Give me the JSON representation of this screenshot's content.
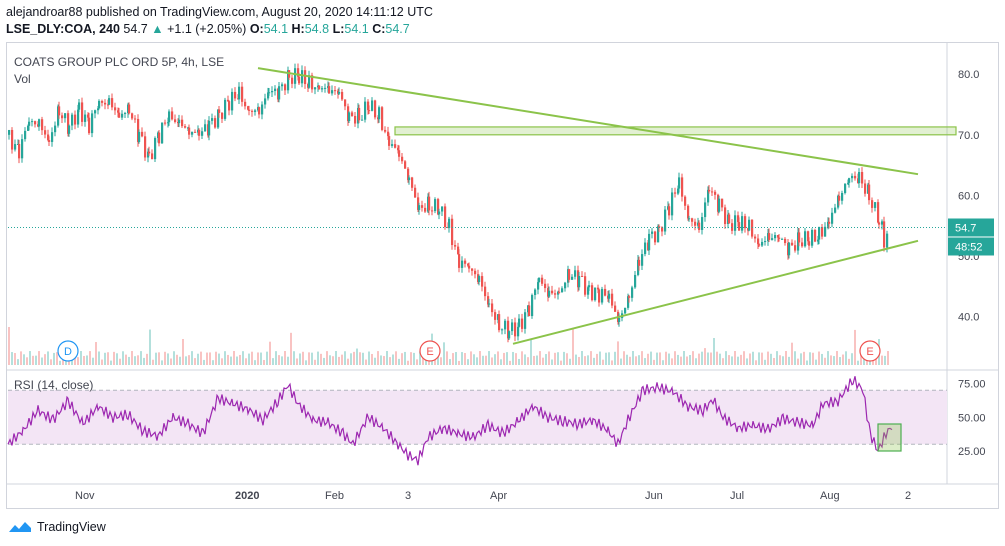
{
  "header": {
    "published": "alejandroar88 published on TradingView.com, August 20, 2020 14:11:12 UTC",
    "symbol": "LSE_DLY:COA, 240",
    "last": "54.7",
    "change": "+1.1 (+2.05%)",
    "ohlc": {
      "o": "54.1",
      "h": "54.8",
      "l": "54.1",
      "c": "54.7"
    }
  },
  "legend": {
    "title": "COATS GROUP PLC ORD 5P, 4h, LSE",
    "vol": "Vol"
  },
  "rsi": {
    "label": "RSI (14, close)"
  },
  "price_tag": "54.7",
  "countdown_tag": "48:52",
  "footer": {
    "brand": "TradingView"
  },
  "colors": {
    "up": "#26a69a",
    "down": "#ef5350",
    "trend": "#8bc34a",
    "rsi": "#9c27b0",
    "rsi_band": "#f3e5f5"
  },
  "chart_data": [
    {
      "type": "candlestick",
      "title": "COATS GROUP PLC ORD 5P, 4h, LSE",
      "x_ticks": [
        "Nov",
        "2020",
        "Feb",
        "3",
        "Apr",
        "Jun",
        "Jul",
        "Aug",
        "2"
      ],
      "y_ticks": [
        40,
        50,
        60,
        70,
        80
      ],
      "ylim": [
        32,
        84
      ],
      "last_price": 54.7,
      "price_path": [
        [
          0,
          70
        ],
        [
          10,
          68
        ],
        [
          20,
          71
        ],
        [
          30,
          72
        ],
        [
          40,
          70
        ],
        [
          50,
          73
        ],
        [
          60,
          71
        ],
        [
          70,
          75
        ],
        [
          80,
          72
        ],
        [
          90,
          74
        ],
        [
          100,
          76
        ],
        [
          110,
          74
        ],
        [
          120,
          73
        ],
        [
          130,
          70
        ],
        [
          140,
          67
        ],
        [
          150,
          70
        ],
        [
          160,
          72
        ],
        [
          170,
          73
        ],
        [
          180,
          71
        ],
        [
          190,
          69
        ],
        [
          200,
          72
        ],
        [
          210,
          74
        ],
        [
          220,
          75
        ],
        [
          230,
          76
        ],
        [
          240,
          75
        ],
        [
          250,
          74
        ],
        [
          260,
          76
        ],
        [
          270,
          78
        ],
        [
          280,
          80
        ],
        [
          290,
          79
        ],
        [
          300,
          78
        ],
        [
          310,
          79
        ],
        [
          320,
          77
        ],
        [
          330,
          76
        ],
        [
          340,
          74
        ],
        [
          350,
          73
        ],
        [
          360,
          74
        ],
        [
          370,
          73
        ],
        [
          380,
          70
        ],
        [
          390,
          66
        ],
        [
          400,
          62
        ],
        [
          410,
          59
        ],
        [
          420,
          58
        ],
        [
          430,
          57
        ],
        [
          440,
          55
        ],
        [
          450,
          50
        ],
        [
          460,
          47
        ],
        [
          470,
          46
        ],
        [
          480,
          43
        ],
        [
          490,
          38
        ],
        [
          500,
          37
        ],
        [
          510,
          39
        ],
        [
          520,
          42
        ],
        [
          530,
          45
        ],
        [
          540,
          44
        ],
        [
          550,
          45
        ],
        [
          560,
          46
        ],
        [
          570,
          46
        ],
        [
          580,
          45
        ],
        [
          590,
          44
        ],
        [
          600,
          42
        ],
        [
          610,
          40
        ],
        [
          620,
          44
        ],
        [
          630,
          48
        ],
        [
          640,
          53
        ],
        [
          650,
          55
        ],
        [
          660,
          58
        ],
        [
          670,
          61
        ],
        [
          680,
          57
        ],
        [
          690,
          55
        ],
        [
          700,
          60
        ],
        [
          710,
          59
        ],
        [
          720,
          56
        ],
        [
          730,
          55
        ],
        [
          740,
          54
        ],
        [
          750,
          53
        ],
        [
          760,
          53
        ],
        [
          770,
          52
        ],
        [
          780,
          52
        ],
        [
          790,
          53
        ],
        [
          800,
          52
        ],
        [
          810,
          53
        ],
        [
          820,
          57
        ],
        [
          830,
          59
        ],
        [
          840,
          62
        ],
        [
          850,
          64
        ],
        [
          860,
          60
        ],
        [
          870,
          55
        ],
        [
          875,
          53
        ],
        [
          880,
          54.7
        ]
      ],
      "trendlines": [
        {
          "name": "upper-trendline",
          "from": [
            250,
            81
          ],
          "to": [
            910,
            63.5
          ]
        },
        {
          "name": "lower-trendline",
          "from": [
            505,
            35.5
          ],
          "to": [
            910,
            52.5
          ]
        }
      ],
      "zone": {
        "name": "resistance-zone",
        "x_from": 387,
        "x_to": 948,
        "y_from": 70,
        "y_to": 71.3
      },
      "markers": [
        {
          "label": "D",
          "x": 60,
          "color": "#2196f3"
        },
        {
          "label": "E",
          "x": 422,
          "color": "#ef5350"
        },
        {
          "label": "E",
          "x": 862,
          "color": "#ef5350"
        }
      ]
    },
    {
      "type": "line",
      "title": "RSI (14, close)",
      "y_ticks": [
        25,
        50,
        75
      ],
      "ylim": [
        5,
        85
      ],
      "band": [
        30,
        70
      ],
      "values": [
        [
          0,
          30
        ],
        [
          15,
          40
        ],
        [
          30,
          55
        ],
        [
          45,
          48
        ],
        [
          60,
          62
        ],
        [
          75,
          45
        ],
        [
          90,
          58
        ],
        [
          105,
          50
        ],
        [
          120,
          52
        ],
        [
          135,
          40
        ],
        [
          150,
          36
        ],
        [
          165,
          50
        ],
        [
          180,
          45
        ],
        [
          195,
          38
        ],
        [
          210,
          64
        ],
        [
          225,
          60
        ],
        [
          240,
          56
        ],
        [
          255,
          48
        ],
        [
          270,
          62
        ],
        [
          280,
          74
        ],
        [
          290,
          60
        ],
        [
          305,
          48
        ],
        [
          320,
          46
        ],
        [
          335,
          38
        ],
        [
          345,
          30
        ],
        [
          360,
          50
        ],
        [
          375,
          42
        ],
        [
          390,
          30
        ],
        [
          400,
          22
        ],
        [
          410,
          18
        ],
        [
          420,
          35
        ],
        [
          435,
          42
        ],
        [
          450,
          38
        ],
        [
          465,
          35
        ],
        [
          480,
          44
        ],
        [
          495,
          38
        ],
        [
          510,
          47
        ],
        [
          525,
          58
        ],
        [
          540,
          50
        ],
        [
          555,
          47
        ],
        [
          570,
          45
        ],
        [
          585,
          48
        ],
        [
          600,
          40
        ],
        [
          610,
          30
        ],
        [
          620,
          48
        ],
        [
          635,
          70
        ],
        [
          650,
          72
        ],
        [
          665,
          69
        ],
        [
          680,
          58
        ],
        [
          695,
          55
        ],
        [
          705,
          63
        ],
        [
          715,
          50
        ],
        [
          730,
          42
        ],
        [
          745,
          44
        ],
        [
          760,
          41
        ],
        [
          775,
          49
        ],
        [
          790,
          46
        ],
        [
          805,
          44
        ],
        [
          815,
          60
        ],
        [
          830,
          62
        ],
        [
          845,
          78
        ],
        [
          855,
          70
        ],
        [
          862,
          38
        ],
        [
          870,
          25
        ],
        [
          878,
          38
        ],
        [
          885,
          44
        ]
      ],
      "box": {
        "name": "rsi-highlight-box",
        "x_from": 870,
        "x_to": 893,
        "y_from": 25,
        "y_to": 45
      }
    }
  ]
}
